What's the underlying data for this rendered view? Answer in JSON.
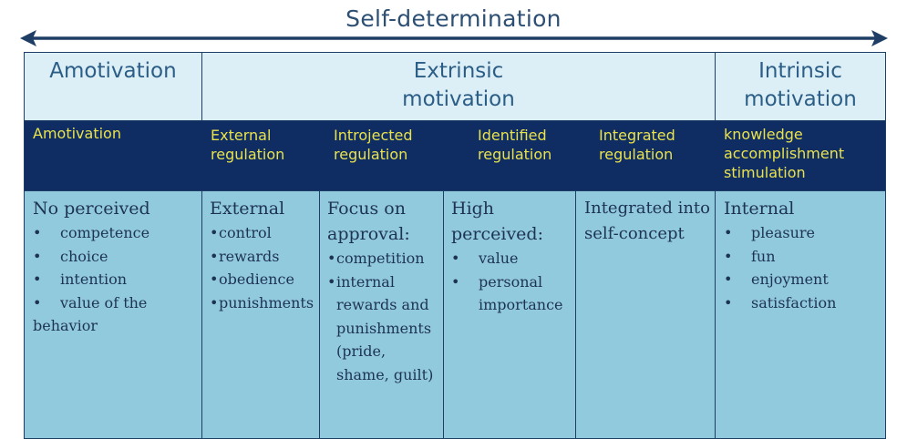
{
  "title": "Self-determination",
  "colors": {
    "header_bg": "#dceff6",
    "band_bg": "#0f2d62",
    "band_text": "#e9e24d",
    "body_bg": "#92cadd",
    "arrow": "#1f3e66"
  },
  "headers": {
    "amotivation": "Amotivation",
    "extrinsic_1": "Extrinsic",
    "extrinsic_2": "motivation",
    "intrinsic_1": "Intrinsic",
    "intrinsic_2": "motivation"
  },
  "regulation": {
    "amotivation": "Amotivation",
    "external_1": "External",
    "external_2": "regulation",
    "introjected_1": "Introjected",
    "introjected_2": "regulation",
    "identified_1": "Identified",
    "identified_2": "regulation",
    "integrated_1": "Integrated",
    "integrated_2": "regulation",
    "intrinsic_1": "knowledge",
    "intrinsic_2": "accomplishment",
    "intrinsic_3": "stimulation"
  },
  "details": {
    "amotivation": {
      "lead": "No perceived",
      "items": [
        "competence",
        "choice",
        "intention",
        "value of the"
      ],
      "tail": "behavior"
    },
    "external": {
      "lead": "External",
      "items": [
        "control",
        "rewards",
        "obedience",
        "punishments"
      ]
    },
    "introjected": {
      "lead_1": "Focus on",
      "lead_2": "approval:",
      "items": [
        "competition",
        "internal"
      ],
      "continuation": [
        "rewards and",
        "punishments",
        "(pride,",
        "shame, guilt)"
      ]
    },
    "identified": {
      "lead_1": "High",
      "lead_2": "perceived:",
      "items": [
        "value",
        "personal"
      ],
      "continuation": [
        "importance"
      ]
    },
    "integrated": {
      "lead_1": "Integrated into",
      "lead_2": "self-concept"
    },
    "intrinsic": {
      "lead": "Internal",
      "items": [
        "pleasure",
        "fun",
        "enjoyment",
        "satisfaction"
      ]
    }
  }
}
